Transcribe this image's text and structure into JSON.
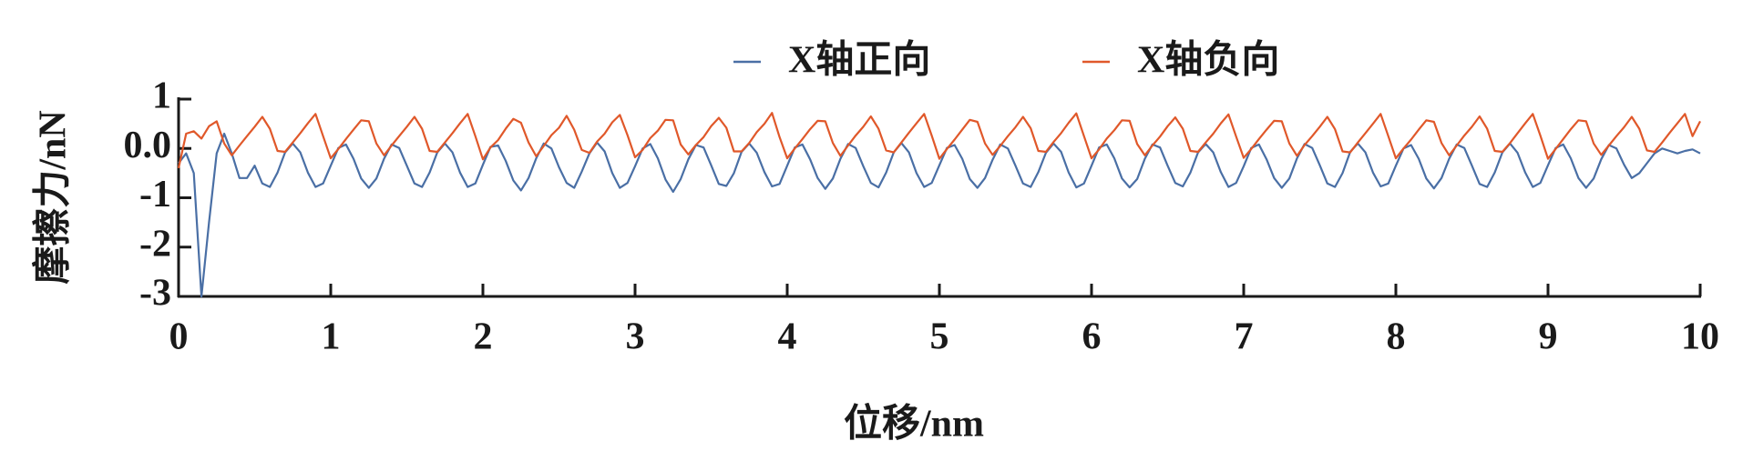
{
  "chart_data": {
    "type": "line",
    "xlabel": "位移/nm",
    "ylabel": "摩擦力/nN",
    "xlim": [
      0,
      10
    ],
    "ylim": [
      -3,
      1
    ],
    "xticks": [
      0,
      1,
      2,
      3,
      4,
      5,
      6,
      7,
      8,
      9,
      10
    ],
    "yticks": [
      1,
      {
        "value": 0,
        "label": "0.0"
      },
      -1,
      -2,
      -3
    ],
    "legend": "top",
    "x": [
      0,
      0.05,
      0.1,
      0.15,
      0.2,
      0.25,
      0.3,
      0.35,
      0.4,
      0.45,
      0.5,
      0.55,
      0.6,
      0.65,
      0.7,
      0.75,
      0.8,
      0.85,
      0.9,
      0.95,
      1,
      1.05,
      1.1,
      1.15,
      1.2,
      1.25,
      1.3,
      1.35,
      1.4,
      1.45,
      1.5,
      1.55,
      1.6,
      1.65,
      1.7,
      1.75,
      1.8,
      1.85,
      1.9,
      1.95,
      2,
      2.05,
      2.1,
      2.15,
      2.2,
      2.25,
      2.3,
      2.35,
      2.4,
      2.45,
      2.5,
      2.55,
      2.6,
      2.65,
      2.7,
      2.75,
      2.8,
      2.85,
      2.9,
      2.95,
      3,
      3.05,
      3.1,
      3.15,
      3.2,
      3.25,
      3.3,
      3.35,
      3.4,
      3.45,
      3.5,
      3.55,
      3.6,
      3.65,
      3.7,
      3.75,
      3.8,
      3.85,
      3.9,
      3.95,
      4,
      4.05,
      4.1,
      4.15,
      4.2,
      4.25,
      4.3,
      4.35,
      4.4,
      4.45,
      4.5,
      4.55,
      4.6,
      4.65,
      4.7,
      4.75,
      4.8,
      4.85,
      4.9,
      4.95,
      5,
      5.05,
      5.1,
      5.15,
      5.2,
      5.25,
      5.3,
      5.35,
      5.4,
      5.45,
      5.5,
      5.55,
      5.6,
      5.65,
      5.7,
      5.75,
      5.8,
      5.85,
      5.9,
      5.95,
      6,
      6.05,
      6.1,
      6.15,
      6.2,
      6.25,
      6.3,
      6.35,
      6.4,
      6.45,
      6.5,
      6.55,
      6.6,
      6.65,
      6.7,
      6.75,
      6.8,
      6.85,
      6.9,
      6.95,
      7,
      7.05,
      7.1,
      7.15,
      7.2,
      7.25,
      7.3,
      7.35,
      7.4,
      7.45,
      7.5,
      7.55,
      7.6,
      7.65,
      7.7,
      7.75,
      7.8,
      7.85,
      7.9,
      7.95,
      8,
      8.05,
      8.1,
      8.15,
      8.2,
      8.25,
      8.3,
      8.35,
      8.4,
      8.45,
      8.5,
      8.55,
      8.6,
      8.65,
      8.7,
      8.75,
      8.8,
      8.85,
      8.9,
      8.95,
      9,
      9.05,
      9.1,
      9.15,
      9.2,
      9.25,
      9.3,
      9.35,
      9.4,
      9.45,
      9.5,
      9.55,
      9.6,
      9.65,
      9.7,
      9.75,
      9.8,
      9.85,
      9.9,
      9.95,
      10
    ],
    "series": [
      {
        "name": "X轴正向",
        "color": "#4a6fa5",
        "values": [
          -0.3,
          -0.1,
          -0.5,
          -3.0,
          -1.5,
          -0.1,
          0.3,
          -0.1,
          -0.6,
          -0.6,
          -0.35,
          -0.71,
          -0.78,
          -0.49,
          -0.08,
          0.1,
          -0.08,
          -0.49,
          -0.78,
          -0.71,
          -0.35,
          0.01,
          0.08,
          -0.21,
          -0.61,
          -0.8,
          -0.61,
          -0.21,
          0.08,
          0.01,
          -0.35,
          -0.71,
          -0.78,
          -0.49,
          -0.08,
          0.1,
          -0.08,
          -0.49,
          -0.78,
          -0.71,
          -0.33,
          0.03,
          0.06,
          -0.25,
          -0.65,
          -0.85,
          -0.6,
          -0.2,
          0.1,
          0.0,
          -0.38,
          -0.7,
          -0.8,
          -0.47,
          -0.1,
          0.12,
          -0.06,
          -0.5,
          -0.8,
          -0.7,
          -0.36,
          0.0,
          0.09,
          -0.2,
          -0.63,
          -0.88,
          -0.62,
          -0.22,
          0.07,
          0.02,
          -0.34,
          -0.72,
          -0.76,
          -0.5,
          -0.07,
          0.1,
          -0.09,
          -0.48,
          -0.77,
          -0.72,
          -0.35,
          0.02,
          0.08,
          -0.22,
          -0.6,
          -0.82,
          -0.61,
          -0.21,
          0.09,
          0.01,
          -0.36,
          -0.7,
          -0.79,
          -0.49,
          -0.08,
          0.11,
          -0.08,
          -0.5,
          -0.78,
          -0.7,
          -0.34,
          0.01,
          0.07,
          -0.21,
          -0.62,
          -0.8,
          -0.6,
          -0.23,
          0.08,
          0.0,
          -0.35,
          -0.71,
          -0.78,
          -0.48,
          -0.09,
          0.1,
          -0.07,
          -0.49,
          -0.79,
          -0.71,
          -0.35,
          0.02,
          0.08,
          -0.2,
          -0.61,
          -0.79,
          -0.62,
          -0.21,
          0.08,
          0.02,
          -0.35,
          -0.7,
          -0.77,
          -0.49,
          -0.08,
          0.09,
          -0.08,
          -0.48,
          -0.78,
          -0.7,
          -0.36,
          0.01,
          0.08,
          -0.22,
          -0.6,
          -0.8,
          -0.61,
          -0.2,
          0.09,
          0.01,
          -0.34,
          -0.71,
          -0.78,
          -0.5,
          -0.07,
          0.1,
          -0.08,
          -0.49,
          -0.77,
          -0.71,
          -0.35,
          0.0,
          0.07,
          -0.21,
          -0.61,
          -0.81,
          -0.6,
          -0.21,
          0.08,
          0.01,
          -0.35,
          -0.72,
          -0.78,
          -0.49,
          -0.08,
          0.1,
          -0.09,
          -0.49,
          -0.78,
          -0.7,
          -0.34,
          0.01,
          0.08,
          -0.2,
          -0.6,
          -0.8,
          -0.61,
          -0.22,
          0.07,
          0.0,
          -0.33,
          -0.6,
          -0.5,
          -0.3,
          -0.1,
          0.0,
          -0.05,
          -0.1,
          -0.05,
          -0.02,
          -0.1
        ]
      },
      {
        "name": "X轴负向",
        "color": "#e0582a",
        "values": [
          -0.4,
          0.3,
          0.35,
          0.2,
          0.45,
          0.55,
          0.1,
          -0.14,
          0.06,
          0.25,
          0.44,
          0.64,
          0.4,
          -0.05,
          -0.07,
          0.12,
          0.31,
          0.51,
          0.7,
          0.25,
          -0.2,
          -0.01,
          0.19,
          0.38,
          0.57,
          0.55,
          0.1,
          -0.14,
          0.06,
          0.25,
          0.44,
          0.64,
          0.4,
          -0.05,
          -0.07,
          0.12,
          0.31,
          0.51,
          0.7,
          0.25,
          -0.22,
          0.02,
          0.17,
          0.4,
          0.6,
          0.52,
          0.12,
          -0.16,
          0.05,
          0.27,
          0.42,
          0.66,
          0.38,
          -0.03,
          -0.09,
          0.14,
          0.3,
          0.53,
          0.68,
          0.27,
          -0.18,
          -0.03,
          0.21,
          0.36,
          0.58,
          0.57,
          0.08,
          -0.12,
          0.07,
          0.23,
          0.45,
          0.62,
          0.42,
          -0.06,
          -0.06,
          0.11,
          0.33,
          0.5,
          0.72,
          0.23,
          -0.2,
          0.0,
          0.19,
          0.39,
          0.56,
          0.55,
          0.11,
          -0.15,
          0.06,
          0.26,
          0.44,
          0.65,
          0.4,
          -0.04,
          -0.08,
          0.12,
          0.32,
          0.51,
          0.7,
          0.26,
          -0.21,
          -0.01,
          0.18,
          0.38,
          0.58,
          0.54,
          0.1,
          -0.13,
          0.05,
          0.25,
          0.43,
          0.64,
          0.41,
          -0.05,
          -0.07,
          0.13,
          0.31,
          0.52,
          0.71,
          0.25,
          -0.2,
          -0.02,
          0.2,
          0.37,
          0.57,
          0.56,
          0.09,
          -0.14,
          0.06,
          0.24,
          0.45,
          0.63,
          0.4,
          -0.05,
          -0.07,
          0.12,
          0.3,
          0.51,
          0.69,
          0.24,
          -0.19,
          -0.01,
          0.19,
          0.38,
          0.56,
          0.55,
          0.1,
          -0.15,
          0.07,
          0.25,
          0.44,
          0.64,
          0.39,
          -0.06,
          -0.08,
          0.12,
          0.31,
          0.5,
          0.7,
          0.25,
          -0.2,
          0.0,
          0.18,
          0.38,
          0.57,
          0.54,
          0.11,
          -0.14,
          0.06,
          0.26,
          0.44,
          0.65,
          0.4,
          -0.05,
          -0.07,
          0.11,
          0.31,
          0.51,
          0.7,
          0.26,
          -0.21,
          -0.01,
          0.19,
          0.39,
          0.57,
          0.55,
          0.1,
          -0.13,
          0.06,
          0.25,
          0.43,
          0.64,
          0.4,
          -0.04,
          -0.07,
          0.12,
          0.32,
          0.51,
          0.7,
          0.25,
          0.55
        ]
      }
    ]
  }
}
